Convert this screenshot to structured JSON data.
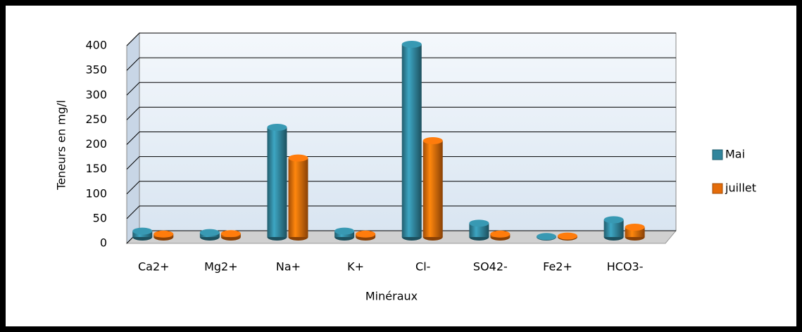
{
  "chart_data": {
    "type": "bar3d",
    "categories": [
      "Ca2+",
      "Mg2+",
      "Na+",
      "K+",
      "Cl-",
      "SO42-",
      "Fe2+",
      "HCO3-"
    ],
    "series": [
      {
        "name": "Mai",
        "color": "#31859c",
        "values": [
          12,
          9,
          222,
          12,
          390,
          28,
          1,
          35
        ]
      },
      {
        "name": "juillet",
        "color": "#e46c0a",
        "values": [
          6,
          7,
          160,
          6,
          195,
          6,
          2,
          20
        ]
      }
    ],
    "ylim": [
      0,
      400
    ],
    "yticks": [
      0,
      50,
      100,
      150,
      200,
      250,
      300,
      350,
      400
    ],
    "ylabel": "Teneurs en mg/l",
    "xlabel": "Minéraux",
    "grid": true,
    "legend": "right"
  }
}
